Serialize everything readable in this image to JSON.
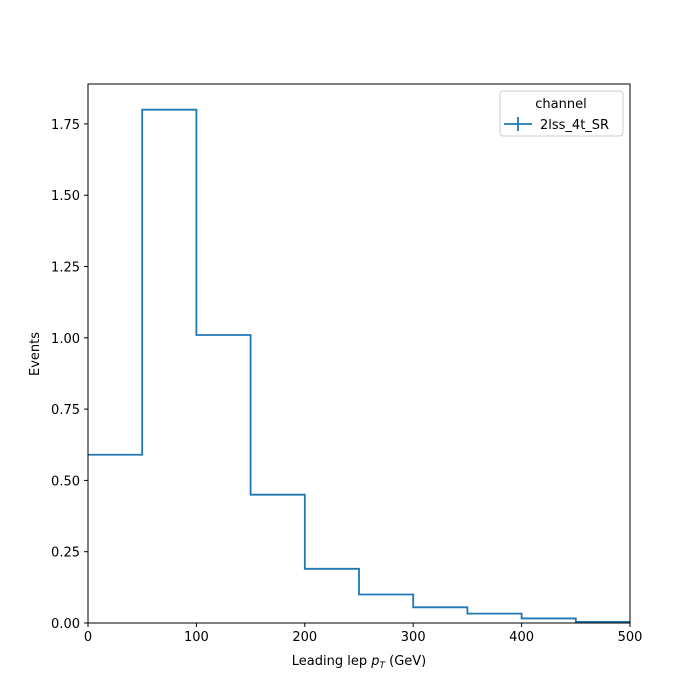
{
  "chart_data": {
    "type": "histogram-step",
    "xlabel_main": "Leading lep ",
    "xlabel_symbol": "p",
    "xlabel_subscript": "T",
    "xlabel_unit": " (GeV)",
    "ylabel": "Events",
    "xlim": [
      0,
      500
    ],
    "ylim": [
      0,
      1.89
    ],
    "x_ticks": [
      "0",
      "100",
      "200",
      "300",
      "400",
      "500"
    ],
    "y_ticks": [
      "0.00",
      "0.25",
      "0.50",
      "0.75",
      "1.00",
      "1.25",
      "1.50",
      "1.75"
    ],
    "grid": false,
    "legend": {
      "title": "channel",
      "placement": "top-right",
      "entries": [
        "2lss_4t_SR"
      ]
    },
    "series": [
      {
        "name": "2lss_4t_SR",
        "color": "#1f77b4",
        "bin_edges": [
          0,
          50,
          100,
          150,
          200,
          250,
          300,
          350,
          400,
          450,
          500
        ],
        "values": [
          0.59,
          1.8,
          1.01,
          0.45,
          0.19,
          0.1,
          0.055,
          0.033,
          0.016,
          0.004
        ]
      }
    ]
  }
}
